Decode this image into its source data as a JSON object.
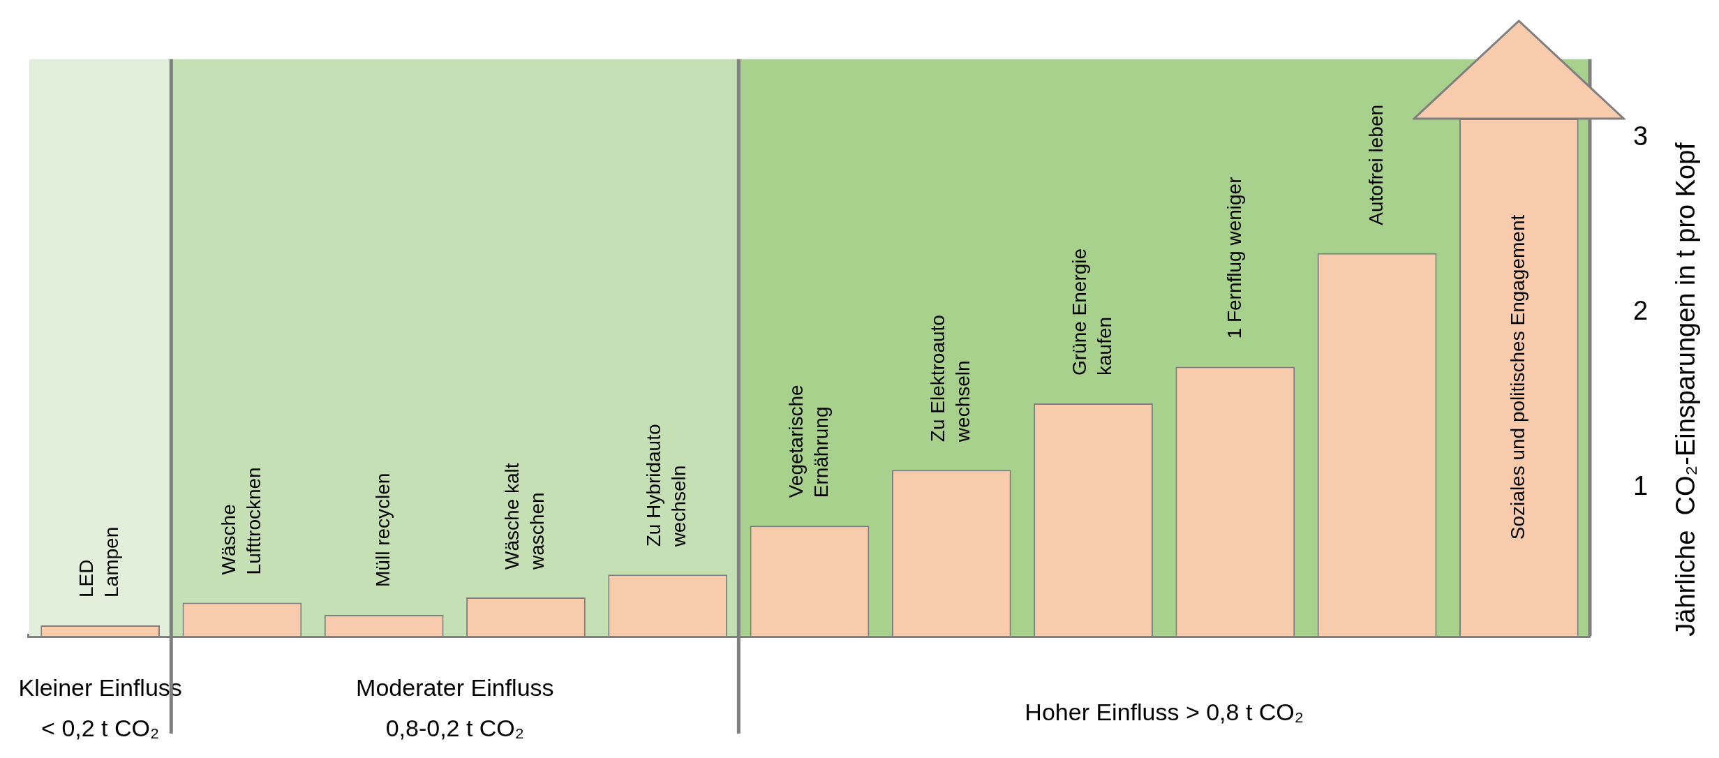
{
  "chart_data": {
    "type": "bar",
    "ylabel": "Jährliche  CO₂-Einsparungen in t pro Kopf",
    "categories": [
      "LED\nLampen",
      "Wäsche\nLufttrocknen",
      "Müll recyclen",
      "Wäsche kalt\nwaschen",
      "Zu Hybridauto\nwechseln",
      "Vegetarische\nErnährung",
      "Zu Elektroauto\nwechseln",
      "Grüne Energie\nkaufen",
      "1 Fernflug weniger",
      "Autofrei leben",
      "Soziales und politisches Engagement"
    ],
    "values": [
      0.21,
      0.34,
      0.27,
      0.37,
      0.5,
      0.78,
      1.1,
      1.48,
      1.69,
      2.34,
      3.11
    ],
    "color": "#f8cbad",
    "ylim": [
      0.15,
      3.45
    ],
    "yticks": [
      1,
      2,
      3
    ],
    "bands": [
      {
        "axis": "x",
        "from": "LED\nLampen",
        "to": "LED\nLampen",
        "label": "Kleiner Einfluss\n< 0,2 t CO₂",
        "color": "#e2efda"
      },
      {
        "axis": "x",
        "from": "Wäsche\nLufttrocknen",
        "to": "Zu Hybridauto\nwechseln",
        "label": "Moderater Einfluss\n0,8-0,2 t CO₂",
        "color": "#c5e0b4"
      },
      {
        "axis": "x",
        "from": "Vegetarische\nErnährung",
        "to": "Soziales und politisches Engagement",
        "label": "Hoher Einfluss > 0,8 t CO₂",
        "color": "#a9d18e"
      }
    ],
    "legend": false
  }
}
